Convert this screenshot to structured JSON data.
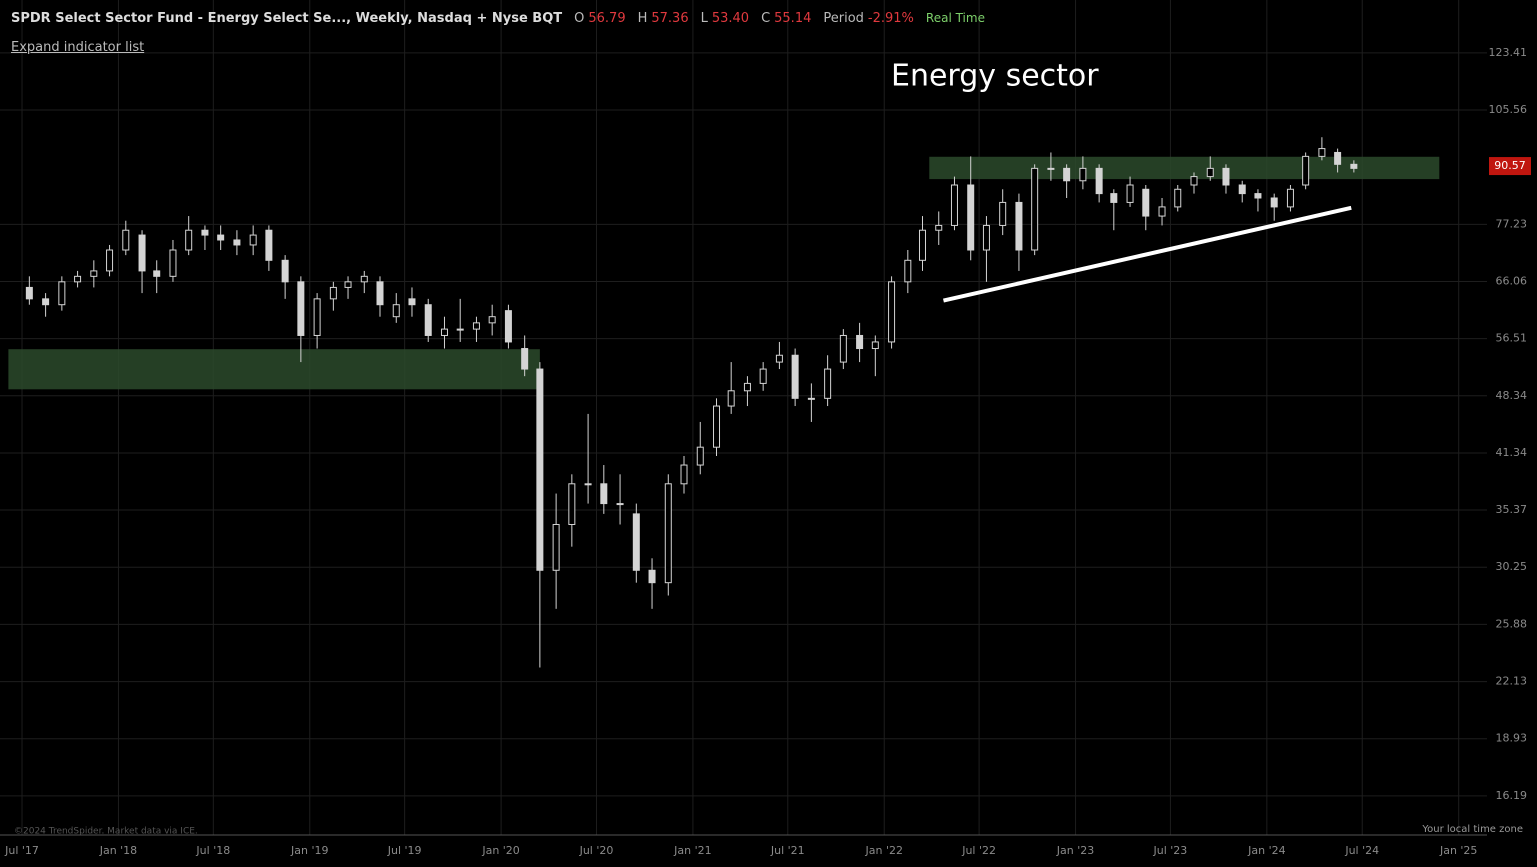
{
  "header": {
    "symbol": "SPDR Select Sector Fund - Energy Select Se..., Weekly, Nasdaq + Nyse BQT",
    "o_label": "O",
    "o": "56.79",
    "h_label": "H",
    "h": "57.36",
    "l_label": "L",
    "l": "53.40",
    "c_label": "C",
    "c": "55.14",
    "period_label": "Period",
    "period": "-2.91%",
    "status": "Real Time",
    "expand": "Expand indicator list",
    "copyright": "©2024 TrendSpider. Market data via ICE.",
    "timezone": "Your local time zone"
  },
  "chart_data": {
    "type": "candlestick",
    "annotation": "Energy sector",
    "log_scale": true,
    "grid": true,
    "color": "#d4d4d4",
    "x": [
      "2017-07",
      "2017-08",
      "2017-09",
      "2017-10",
      "2017-11",
      "2017-12",
      "2018-01",
      "2018-02",
      "2018-03",
      "2018-04",
      "2018-05",
      "2018-06",
      "2018-07",
      "2018-08",
      "2018-09",
      "2018-10",
      "2018-11",
      "2018-12",
      "2019-01",
      "2019-02",
      "2019-03",
      "2019-04",
      "2019-05",
      "2019-06",
      "2019-07",
      "2019-08",
      "2019-09",
      "2019-10",
      "2019-11",
      "2019-12",
      "2020-01",
      "2020-02",
      "2020-03",
      "2020-04",
      "2020-05",
      "2020-06",
      "2020-07",
      "2020-08",
      "2020-09",
      "2020-10",
      "2020-11",
      "2020-12",
      "2021-01",
      "2021-02",
      "2021-03",
      "2021-04",
      "2021-05",
      "2021-06",
      "2021-07",
      "2021-08",
      "2021-09",
      "2021-10",
      "2021-11",
      "2021-12",
      "2022-01",
      "2022-02",
      "2022-03",
      "2022-04",
      "2022-05",
      "2022-06",
      "2022-07",
      "2022-08",
      "2022-09",
      "2022-10",
      "2022-11",
      "2022-12",
      "2023-01",
      "2023-02",
      "2023-03",
      "2023-04",
      "2023-05",
      "2023-06",
      "2023-07",
      "2023-08",
      "2023-09",
      "2023-10",
      "2023-11",
      "2023-12",
      "2024-01",
      "2024-02",
      "2024-03",
      "2024-04",
      "2024-05",
      "2024-06"
    ],
    "open": [
      65,
      63,
      62,
      66,
      67,
      68,
      72,
      75,
      68,
      67,
      72,
      76,
      75,
      74,
      73,
      76,
      70,
      66,
      57,
      63,
      65,
      66,
      66,
      60,
      63,
      62,
      57,
      58,
      58,
      59,
      61,
      55,
      52,
      30,
      34,
      38,
      38,
      36,
      35,
      30,
      29,
      38,
      40,
      42,
      47,
      49,
      50,
      53,
      54,
      48,
      48,
      53,
      57,
      55,
      56,
      66,
      70,
      76,
      77,
      86,
      72,
      77,
      82,
      72,
      90,
      90,
      87,
      90,
      84,
      82,
      85,
      79,
      81,
      86,
      88,
      90,
      86,
      84,
      83,
      81,
      86,
      93,
      94,
      91
    ],
    "high": [
      67,
      64,
      67,
      68,
      70,
      73,
      78,
      76,
      70,
      74,
      79,
      77,
      77,
      76,
      77,
      77,
      71,
      67,
      64,
      66,
      67,
      68,
      67,
      64,
      65,
      63,
      60,
      63,
      60,
      62,
      62,
      57,
      53,
      37,
      39,
      46,
      40,
      39,
      36,
      31,
      39,
      41,
      45,
      48,
      53,
      51,
      53,
      56,
      55,
      50,
      54,
      58,
      59,
      57,
      67,
      72,
      79,
      80,
      88,
      93,
      79,
      85,
      84,
      91,
      94,
      91,
      93,
      91,
      85,
      88,
      86,
      83,
      86,
      89,
      93,
      91,
      87,
      85,
      84,
      86,
      94,
      98,
      95,
      92
    ],
    "low": [
      62,
      60,
      61,
      65,
      65,
      67,
      71,
      64,
      64,
      66,
      71,
      72,
      72,
      71,
      71,
      68,
      63,
      53,
      55,
      61,
      63,
      64,
      60,
      59,
      60,
      56,
      55,
      56,
      56,
      57,
      55,
      51,
      23,
      27,
      32,
      36,
      35,
      34,
      29,
      27,
      28,
      37,
      39,
      41,
      46,
      47,
      49,
      52,
      47,
      45,
      47,
      52,
      53,
      51,
      55,
      64,
      68,
      73,
      76,
      70,
      66,
      75,
      68,
      71,
      87,
      83,
      85,
      82,
      76,
      81,
      76,
      77,
      80,
      84,
      87,
      84,
      82,
      80,
      78,
      80,
      85,
      92,
      89,
      89
    ],
    "close": [
      63,
      62,
      66,
      67,
      68,
      72,
      76,
      68,
      67,
      72,
      76,
      75,
      74,
      73,
      75,
      70,
      66,
      57,
      63,
      65,
      66,
      67,
      62,
      62,
      62,
      57,
      58,
      58,
      59,
      60,
      56,
      52,
      30,
      34,
      38,
      38,
      36,
      36,
      30,
      29,
      38,
      40,
      42,
      47,
      49,
      50,
      52,
      54,
      48,
      48,
      52,
      57,
      55,
      56,
      66,
      70,
      76,
      77,
      86,
      72,
      77,
      82,
      72,
      90,
      90,
      87,
      90,
      84,
      82,
      86,
      79,
      81,
      85,
      88,
      90,
      86,
      84,
      83,
      81,
      85,
      93,
      95,
      91,
      90
    ],
    "xlim": [
      "2017-05-20",
      "2025-02-24"
    ],
    "xticks": [
      {
        "value": "2017-07-01",
        "label": "Jul '17"
      },
      {
        "value": "2018-01-01",
        "label": "Jan '18"
      },
      {
        "value": "2018-07-01",
        "label": "Jul '18"
      },
      {
        "value": "2019-01-01",
        "label": "Jan '19"
      },
      {
        "value": "2019-07-01",
        "label": "Jul '19"
      },
      {
        "value": "2020-01-01",
        "label": "Jan '20"
      },
      {
        "value": "2020-07-01",
        "label": "Jul '20"
      },
      {
        "value": "2021-01-01",
        "label": "Jan '21"
      },
      {
        "value": "2021-07-01",
        "label": "Jul '21"
      },
      {
        "value": "2022-01-01",
        "label": "Jan '22"
      },
      {
        "value": "2022-07-01",
        "label": "Jul '22"
      },
      {
        "value": "2023-01-01",
        "label": "Jan '23"
      },
      {
        "value": "2023-07-01",
        "label": "Jul '23"
      },
      {
        "value": "2024-01-01",
        "label": "Jan '24"
      },
      {
        "value": "2024-07-01",
        "label": "Jul '24"
      },
      {
        "value": "2025-01-01",
        "label": "Jan '25"
      }
    ],
    "ylim": [
      14.55,
      142.6
    ],
    "yticks": [
      16.19,
      18.93,
      22.13,
      25.88,
      30.25,
      35.37,
      41.34,
      48.34,
      56.51,
      66.06,
      77.23,
      105.56,
      123.41
    ],
    "last_price": 90.57,
    "last_price_color": "#c0160f",
    "zones": [
      {
        "x": [
          "2017-06-05",
          "2020-03-15"
        ],
        "y": [
          49.2,
          54.9
        ],
        "color": "#2c4a2c"
      },
      {
        "x": [
          "2022-03-28",
          "2024-11-25"
        ],
        "y": [
          87.4,
          92.9
        ],
        "color": "#2c4a2c"
      }
    ],
    "trendline": {
      "x": [
        "2022-04-24",
        "2024-06-10"
      ],
      "y": [
        62.7,
        80.8
      ],
      "color": "#ffffff"
    }
  }
}
